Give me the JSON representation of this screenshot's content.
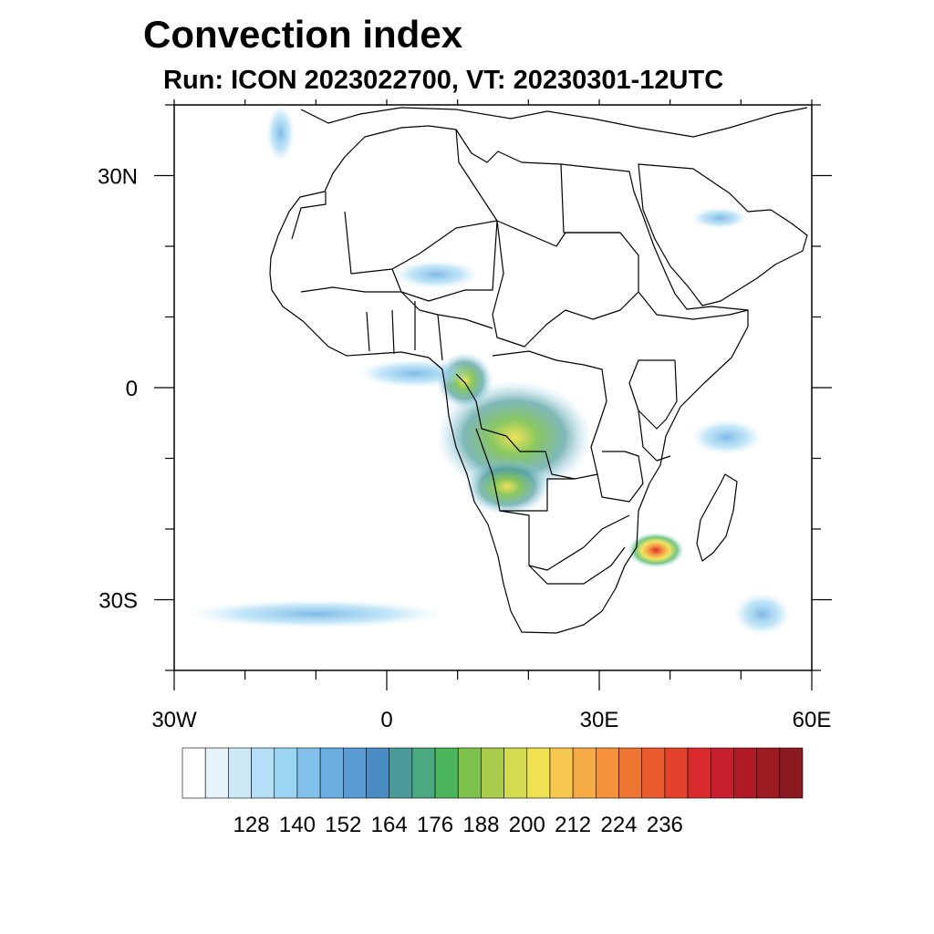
{
  "title": "Convection index",
  "subtitle": "Run: ICON 2023022700,  VT: 20230301-12UTC",
  "map": {
    "region": "Africa",
    "projection": "cylindrical equidistant",
    "lon_range": [
      -30,
      60
    ],
    "lat_range": [
      -40,
      40
    ],
    "lat_tick_labels": [
      {
        "value": 30,
        "text": "30N"
      },
      {
        "value": 0,
        "text": "0"
      },
      {
        "value": -30,
        "text": "30S"
      }
    ],
    "lon_tick_labels": [
      {
        "value": -30,
        "text": "30W"
      },
      {
        "value": 0,
        "text": "0"
      },
      {
        "value": 30,
        "text": "30E"
      },
      {
        "value": 60,
        "text": "60E"
      }
    ]
  },
  "colorbar": {
    "labels": [
      "128",
      "140",
      "152",
      "164",
      "176",
      "188",
      "200",
      "212",
      "224",
      "236"
    ],
    "colors": [
      "#ffffff",
      "#e6f3fb",
      "#cde8f7",
      "#b4dff6",
      "#9ad5f4",
      "#82c1ea",
      "#6aaee0",
      "#5a9bd3",
      "#4a8cc4",
      "#4a9a9a",
      "#4aa980",
      "#4ab55a",
      "#7ec24e",
      "#a9cd4a",
      "#d2dc4e",
      "#f0e152",
      "#f7c84f",
      "#f7ab45",
      "#f4913a",
      "#ef7632",
      "#e95a2d",
      "#e3412b",
      "#d92b2e",
      "#c61e2d",
      "#b01a27",
      "#9c1a22",
      "#8a1a1f"
    ]
  },
  "convection_areas": [
    {
      "name": "central-africa",
      "lon": 18,
      "lat": -7,
      "rx": 11,
      "ry": 8,
      "level": 0.75
    },
    {
      "name": "mozambique-channel",
      "lon": 38,
      "lat": -23,
      "rx": 4,
      "ry": 2.5,
      "level": 0.95
    },
    {
      "name": "gabon-cameroon",
      "lon": 11,
      "lat": 1,
      "rx": 4,
      "ry": 4,
      "level": 0.6
    },
    {
      "name": "angola-zambia",
      "lon": 17,
      "lat": -14,
      "rx": 6,
      "ry": 4,
      "level": 0.65
    },
    {
      "name": "gulf-of-guinea",
      "lon": 4,
      "lat": 2,
      "rx": 8,
      "ry": 2,
      "level": 0.25
    },
    {
      "name": "sahel-band",
      "lon": 7,
      "lat": 16,
      "rx": 6,
      "ry": 2,
      "level": 0.2
    },
    {
      "name": "southwest-indian-ocean",
      "lon": 53,
      "lat": -32,
      "rx": 4,
      "ry": 3,
      "level": 0.45
    },
    {
      "name": "arabia",
      "lon": 47,
      "lat": 24,
      "rx": 4,
      "ry": 1.5,
      "level": 0.3
    },
    {
      "name": "north-atlantic",
      "lon": -15,
      "lat": 36,
      "rx": 2,
      "ry": 4,
      "level": 0.35
    },
    {
      "name": "south-atlantic-band",
      "lon": -10,
      "lat": -32,
      "rx": 18,
      "ry": 2,
      "level": 0.3
    },
    {
      "name": "madagascar-east",
      "lon": 48,
      "lat": -7,
      "rx": 5,
      "ry": 2.5,
      "level": 0.4
    }
  ]
}
